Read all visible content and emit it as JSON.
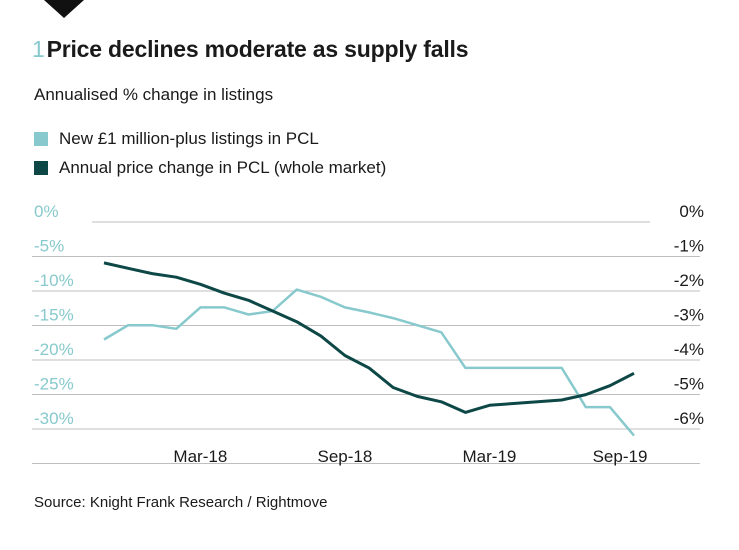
{
  "header": {
    "number": "1",
    "title": "Price declines moderate as supply falls",
    "subtitle": "Annualised % change in listings"
  },
  "source": "Source: Knight Frank Research / Rightmove",
  "colors": {
    "accent": "#87c9cc",
    "dark": "#0d4847",
    "grid": "#bfbfbf"
  },
  "chart_data": {
    "type": "line",
    "title": "Price declines moderate as supply falls",
    "subtitle": "Annualised % change in listings",
    "x": [
      "Nov-17",
      "Dec-17",
      "Jan-18",
      "Feb-18",
      "Mar-18",
      "Apr-18",
      "May-18",
      "Jun-18",
      "Jul-18",
      "Aug-18",
      "Sep-18",
      "Oct-18",
      "Nov-18",
      "Dec-18",
      "Jan-19",
      "Feb-19",
      "Mar-19",
      "Apr-19",
      "May-19",
      "Jun-19",
      "Jul-19",
      "Aug-19",
      "Sep-19"
    ],
    "x_tick_labels": [
      "Mar-18",
      "Sep-18",
      "Mar-19",
      "Sep-19"
    ],
    "x_tick_index": [
      4,
      10,
      16,
      22
    ],
    "y_left": {
      "ticks": [
        "0%",
        "-5%",
        "-10%",
        "-15%",
        "-20%",
        "-25%",
        "-30%"
      ],
      "range": [
        -31.5,
        0
      ]
    },
    "y_right": {
      "ticks": [
        "0%",
        "-1%",
        "-2%",
        "-3%",
        "-4%",
        "-5%",
        "-6%"
      ],
      "range": [
        -6.3,
        0
      ]
    },
    "grid": true,
    "legend_position": "top-left",
    "series": [
      {
        "name": "New £1 million-plus listings in PCL",
        "axis": "left",
        "color": "#87c9cc",
        "values": [
          -16.5,
          -14.5,
          -14.5,
          -15,
          -12,
          -12,
          -13,
          -12.5,
          -9.5,
          -10.5,
          -12,
          -12.7,
          -13.5,
          -14.5,
          -15.5,
          -20.5,
          -20.5,
          -20.5,
          -20.5,
          -20.5,
          -26,
          -26,
          -30
        ]
      },
      {
        "name": "Annual price change in PCL (whole market)",
        "axis": "right",
        "color": "#0d4847",
        "values": [
          -1.15,
          -1.3,
          -1.45,
          -1.55,
          -1.75,
          -2.0,
          -2.2,
          -2.5,
          -2.8,
          -3.2,
          -3.75,
          -4.1,
          -4.65,
          -4.9,
          -5.05,
          -5.35,
          -5.15,
          -5.1,
          -5.05,
          -5.0,
          -4.85,
          -4.6,
          -4.25
        ]
      }
    ]
  }
}
